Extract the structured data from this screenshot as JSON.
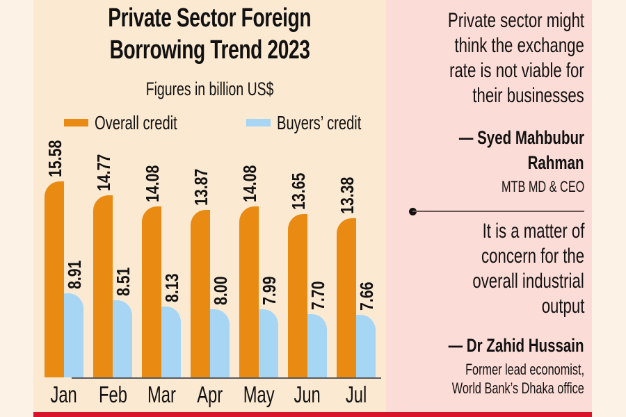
{
  "colors": {
    "overall": "#e98a13",
    "buyers": "#a6d6f4",
    "accent_bar": "#d7142a"
  },
  "chart_data": {
    "type": "bar",
    "title": "Private Sector Foreign Borrowing Trend 2023",
    "title_lines": [
      "Private Sector Foreign",
      "Borrowing Trend 2023"
    ],
    "subtitle": "Figures in billion US$",
    "xlabel": "",
    "ylabel": "",
    "legend_position": "top",
    "grid": false,
    "categories": [
      "Jan",
      "Feb",
      "Mar",
      "Apr",
      "May",
      "Jun",
      "Jul"
    ],
    "series": [
      {
        "name": "Overall credit",
        "values": [
          15.58,
          14.77,
          14.08,
          13.87,
          14.08,
          13.65,
          13.38
        ],
        "labels": [
          "15.58",
          "14.77",
          "14.08",
          "13.87",
          "14.08",
          "13.65",
          "13.38"
        ]
      },
      {
        "name": "Buyers’ credit",
        "values": [
          8.91,
          8.51,
          8.13,
          8.0,
          7.99,
          7.7,
          7.66
        ],
        "labels": [
          "8.91",
          "8.51",
          "8.13",
          "8.00",
          "7.99",
          "7.70",
          "7.66"
        ]
      }
    ]
  },
  "quotes": [
    {
      "text_lines": [
        "Private sector might",
        "think the exchange",
        "rate is not viable for",
        "their businesses"
      ],
      "author_lines": [
        "— Syed Mahbubur",
        "Rahman"
      ],
      "role_lines": [
        "MTB MD & CEO"
      ]
    },
    {
      "text_lines": [
        "It is a matter of",
        "concern for the",
        "overall industrial",
        "output"
      ],
      "author_lines": [
        "— Dr Zahid Hussain"
      ],
      "role_lines": [
        "Former lead economist,",
        "World Bank’s Dhaka office"
      ]
    }
  ]
}
